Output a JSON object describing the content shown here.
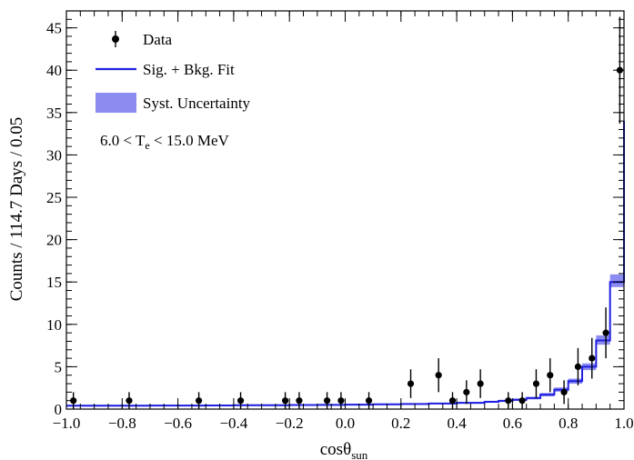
{
  "chart_data": {
    "type": "scatter",
    "title": "",
    "xlabel": "cosθ",
    "xlabel_sub": "sun",
    "ylabel": "Counts / 114.7 Days / 0.05",
    "xlim": [
      -1.0,
      1.0
    ],
    "ylim": [
      0,
      47
    ],
    "xticks": [
      -1.0,
      -0.8,
      -0.6,
      -0.4,
      -0.2,
      0.0,
      0.2,
      0.4,
      0.6,
      0.8,
      1.0
    ],
    "xtick_labels": [
      "−1.0",
      "−0.8",
      "−0.6",
      "−0.4",
      "−0.2",
      "0.0",
      "0.2",
      "0.4",
      "0.6",
      "0.8",
      "1.0"
    ],
    "yticks": [
      0,
      5,
      10,
      15,
      20,
      25,
      30,
      35,
      40,
      45
    ],
    "ytick_labels": [
      "0",
      "5",
      "10",
      "15",
      "20",
      "25",
      "30",
      "35",
      "40",
      "45"
    ],
    "grid": false,
    "legend_position": "top-left",
    "legend": [
      {
        "label": "Data",
        "kind": "marker"
      },
      {
        "label": "Sig. + Bkg. Fit",
        "kind": "line"
      },
      {
        "label": "Syst. Uncertainty",
        "kind": "band"
      }
    ],
    "annotation": {
      "pre": "6.0 < T",
      "sub": "e",
      "post": " < 15.0 MeV"
    },
    "colors": {
      "data": "#000000",
      "fit": "#2020e0",
      "band": "#8c8cf0"
    },
    "bin_width": 0.05,
    "data_points": [
      {
        "x": -0.975,
        "y": 1,
        "err": 1
      },
      {
        "x": -0.775,
        "y": 1,
        "err": 1
      },
      {
        "x": -0.525,
        "y": 1,
        "err": 1
      },
      {
        "x": -0.375,
        "y": 1,
        "err": 1
      },
      {
        "x": -0.215,
        "y": 1,
        "err": 1
      },
      {
        "x": -0.165,
        "y": 1,
        "err": 1
      },
      {
        "x": -0.065,
        "y": 1,
        "err": 1
      },
      {
        "x": -0.015,
        "y": 1,
        "err": 1
      },
      {
        "x": 0.085,
        "y": 1,
        "err": 1
      },
      {
        "x": 0.235,
        "y": 3,
        "err": 1.7
      },
      {
        "x": 0.335,
        "y": 4,
        "err": 2
      },
      {
        "x": 0.385,
        "y": 1,
        "err": 1
      },
      {
        "x": 0.435,
        "y": 2,
        "err": 1.4
      },
      {
        "x": 0.485,
        "y": 3,
        "err": 1.7
      },
      {
        "x": 0.585,
        "y": 1,
        "err": 1
      },
      {
        "x": 0.635,
        "y": 1,
        "err": 1
      },
      {
        "x": 0.685,
        "y": 3,
        "err": 1.7
      },
      {
        "x": 0.735,
        "y": 4,
        "err": 2
      },
      {
        "x": 0.785,
        "y": 2,
        "err": 1.4
      },
      {
        "x": 0.835,
        "y": 5,
        "err": 2.2
      },
      {
        "x": 0.885,
        "y": 6,
        "err": 2.4
      },
      {
        "x": 0.935,
        "y": 9,
        "err": 3
      },
      {
        "x": 0.985,
        "y": 40,
        "err": 6.3
      }
    ],
    "fit": {
      "bin_edges": [
        -1.0,
        -0.9,
        -0.8,
        -0.7,
        -0.6,
        -0.5,
        -0.4,
        -0.3,
        -0.2,
        -0.1,
        0.0,
        0.1,
        0.2,
        0.3,
        0.4,
        0.5,
        0.55,
        0.6,
        0.65,
        0.7,
        0.75,
        0.8,
        0.85,
        0.9,
        0.95,
        1.0
      ],
      "values": [
        0.4,
        0.4,
        0.4,
        0.42,
        0.42,
        0.43,
        0.45,
        0.46,
        0.48,
        0.5,
        0.52,
        0.56,
        0.6,
        0.66,
        0.74,
        0.86,
        0.97,
        1.1,
        1.3,
        1.7,
        2.3,
        3.3,
        5.0,
        8.1,
        15.0,
        34.0
      ],
      "band_low": [
        0.3,
        0.3,
        0.3,
        0.32,
        0.32,
        0.33,
        0.35,
        0.36,
        0.38,
        0.4,
        0.42,
        0.46,
        0.5,
        0.56,
        0.63,
        0.74,
        0.84,
        0.96,
        1.15,
        1.5,
        2.05,
        3.0,
        4.6,
        7.6,
        14.4,
        33.6
      ],
      "band_high": [
        0.5,
        0.5,
        0.5,
        0.52,
        0.52,
        0.53,
        0.55,
        0.56,
        0.58,
        0.6,
        0.62,
        0.66,
        0.7,
        0.76,
        0.85,
        0.98,
        1.1,
        1.25,
        1.45,
        1.9,
        2.55,
        3.6,
        5.4,
        8.7,
        15.9,
        36.8
      ]
    }
  }
}
